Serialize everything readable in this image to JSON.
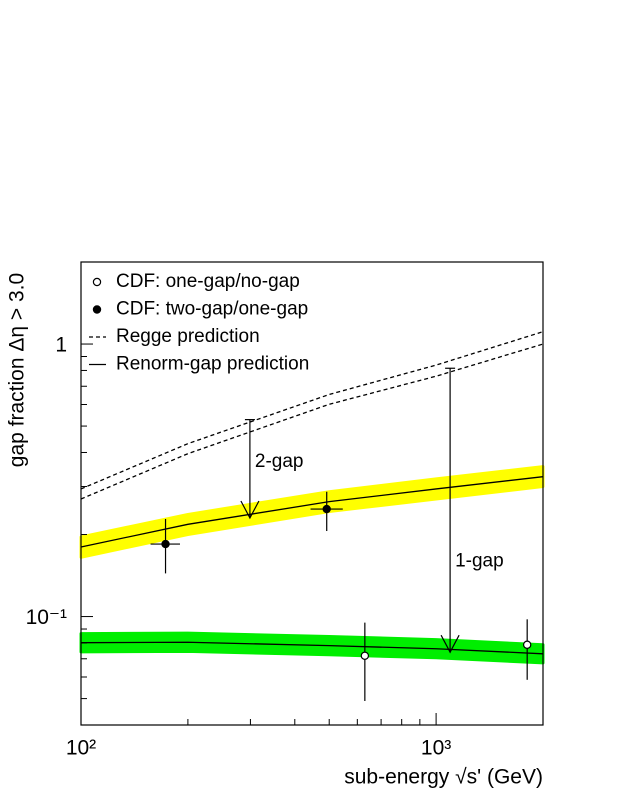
{
  "chart_data": {
    "type": "line",
    "x_label": "sub-energy √s' (GeV)",
    "y_label": "gap fraction Δη > 3.0",
    "log_x": true,
    "log_y": true,
    "xlim": [
      100,
      2000
    ],
    "ylim": [
      0.04,
      2
    ],
    "xticks": [
      {
        "value": 100,
        "label": "10²"
      },
      {
        "value": 1000,
        "label": "10³"
      }
    ],
    "yticks": [
      {
        "value": 0.1,
        "label": "10⁻¹"
      },
      1
    ],
    "xminorticks": [
      200,
      300,
      400,
      500,
      600,
      700,
      800,
      900,
      2000
    ],
    "yminorticks": [
      0.05,
      0.06,
      0.07,
      0.08,
      0.09,
      0.2,
      0.3,
      0.4,
      0.5,
      0.6,
      0.7,
      0.8,
      0.9,
      2
    ],
    "legend": "top-left",
    "series": [
      {
        "name": "CDF: one-gap/no-gap",
        "marker": "open",
        "color": "#000000",
        "x": [
          630,
          1805
        ],
        "values": [
          0.0718,
          0.0788
        ],
        "y_low": [
          0.049,
          0.0586
        ],
        "y_high": [
          0.095,
          0.0977
        ]
      },
      {
        "name": "CDF: two-gap/one-gap",
        "marker": "filled",
        "color": "#000000",
        "x": [
          173,
          492
        ],
        "values": [
          0.1845,
          0.248
        ],
        "y_low": [
          0.144,
          0.206
        ],
        "y_high": [
          0.228,
          0.287
        ],
        "x_low": [
          157,
          443
        ],
        "x_high": [
          190,
          546
        ]
      }
    ],
    "curves": [
      {
        "name": "Regge prediction",
        "dashed": true,
        "color": "#000000",
        "x": [
          100,
          200,
          500,
          1000,
          2000
        ],
        "lines": [
          [
            0.294,
            0.431,
            0.653,
            0.837,
            1.11
          ],
          [
            0.27,
            0.396,
            0.601,
            0.762,
            1.0
          ]
        ]
      },
      {
        "name": "Renorm-gap prediction",
        "dashed": false,
        "color": "#000000",
        "x": [
          100,
          200,
          500,
          1000,
          2000
        ],
        "lines": [
          [
            0.18,
            0.218,
            0.264,
            0.294,
            0.326
          ],
          [
            0.0802,
            0.0805,
            0.0782,
            0.0762,
            0.073
          ]
        ],
        "band_low": [
          [
            0.165,
            0.2,
            0.243,
            0.27,
            0.3
          ],
          [
            0.0742,
            0.0745,
            0.0724,
            0.0706,
            0.0676
          ]
        ],
        "band_high": [
          [
            0.196,
            0.237,
            0.287,
            0.32,
            0.355
          ],
          [
            0.0866,
            0.0869,
            0.0845,
            0.0823,
            0.0788
          ]
        ],
        "band_colors": [
          "#ffff00",
          "#00ee00"
        ]
      }
    ],
    "annotations": [
      {
        "text": "2-gap",
        "x": 299,
        "y_from": 0.528,
        "y_to": 0.23
      },
      {
        "text": "1-gap",
        "x": 1095,
        "y_from": 0.815,
        "y_to": 0.074
      }
    ]
  }
}
